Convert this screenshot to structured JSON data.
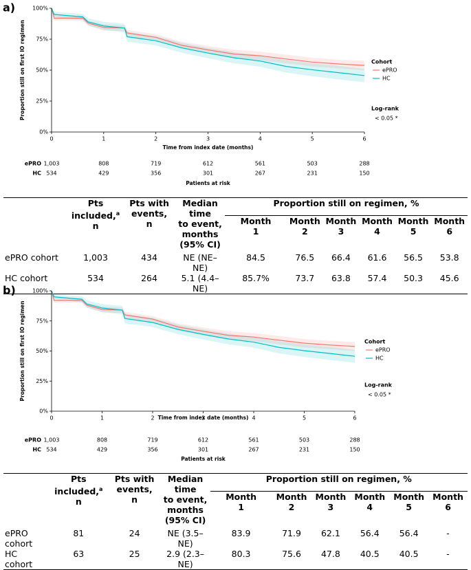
{
  "chart_data": [
    {
      "type": "line",
      "panel": "a)",
      "x_label": "Time from index date (months)",
      "y_label": "Proportion still on first IO regimen",
      "xlim": [
        0,
        6
      ],
      "xticks": [
        0,
        1,
        2,
        3,
        4,
        5,
        6
      ],
      "ylim": [
        0,
        100
      ],
      "yticks": [
        {
          "value": 0,
          "label": "0%"
        },
        {
          "value": 25,
          "label": "25%"
        },
        {
          "value": 50,
          "label": "50%"
        },
        {
          "value": 75,
          "label": "75%"
        },
        {
          "value": 100,
          "label": "100%"
        }
      ],
      "legend_title": "Cohort",
      "annotations": [
        "Log-rank",
        "< 0.05 *"
      ],
      "series": [
        {
          "name": "ePRO",
          "color": "#f8766d",
          "x": [
            0,
            0.05,
            0.6,
            0.7,
            1,
            1.4,
            1.45,
            2,
            2.5,
            3,
            3.5,
            4,
            4.5,
            5,
            5.5,
            6
          ],
          "values": [
            100,
            92,
            92,
            88,
            84.5,
            84,
            80,
            76.5,
            70,
            66.4,
            63,
            61.6,
            59,
            56.5,
            55,
            53.8
          ],
          "ci_upper": [
            100,
            94,
            94,
            90,
            87,
            86,
            82.5,
            79,
            73,
            69.5,
            66.5,
            65,
            62.5,
            60,
            58.5,
            57.5
          ],
          "ci_lower": [
            100,
            90,
            90,
            86,
            82,
            81.5,
            77.5,
            74,
            67,
            63.3,
            59.5,
            58.2,
            55.5,
            53,
            51.5,
            50
          ]
        },
        {
          "name": "HC",
          "color": "#00bfc4",
          "x": [
            0,
            0.05,
            0.6,
            0.7,
            1,
            1.4,
            1.45,
            2,
            2.5,
            3,
            3.5,
            4,
            4.5,
            5,
            5.5,
            6
          ],
          "values": [
            100,
            95,
            93,
            89,
            85.7,
            84,
            77,
            73.7,
            68,
            63.8,
            60,
            57.4,
            53,
            50.3,
            48,
            45.6
          ],
          "ci_upper": [
            100,
            97,
            95.5,
            92,
            89,
            87.5,
            81,
            77.5,
            72,
            68,
            64.5,
            62,
            58,
            55.5,
            53.5,
            51
          ],
          "ci_lower": [
            100,
            93,
            90.5,
            86,
            82.4,
            80.5,
            73,
            69.9,
            64,
            59.6,
            55.5,
            52.8,
            48,
            45.1,
            42.5,
            40.2
          ]
        }
      ],
      "risk_table": {
        "title": "Patients at risk",
        "rows": [
          {
            "name": "ePRO",
            "values": [
              "1,003",
              "808",
              "719",
              "612",
              "561",
              "503",
              "288"
            ]
          },
          {
            "name": "HC",
            "values": [
              "534",
              "429",
              "356",
              "301",
              "267",
              "231",
              "150"
            ]
          }
        ]
      }
    },
    {
      "type": "line",
      "panel": "b)",
      "x_label": "Time from index date (months)",
      "y_label": "Proportion still on first IO regimen",
      "xlim": [
        0,
        6
      ],
      "xticks": [
        0,
        1,
        2,
        3,
        4,
        5,
        6
      ],
      "ylim": [
        0,
        100
      ],
      "yticks": [
        {
          "value": 0,
          "label": "0%"
        },
        {
          "value": 25,
          "label": "25%"
        },
        {
          "value": 50,
          "label": "50%"
        },
        {
          "value": 75,
          "label": "75%"
        },
        {
          "value": 100,
          "label": "100%"
        }
      ],
      "legend_title": "Cohort",
      "annotations": [
        "Log-rank",
        "< 0.05 *"
      ],
      "series": [
        {
          "name": "ePRO",
          "color": "#f8766d",
          "x": [
            0,
            0.05,
            0.6,
            0.7,
            1,
            1.4,
            1.45,
            2,
            2.5,
            3,
            3.5,
            4,
            4.5,
            5,
            5.5,
            6
          ],
          "values": [
            100,
            92,
            92,
            88,
            84.5,
            84,
            80,
            76.5,
            70,
            66.4,
            63,
            61.6,
            59,
            56.5,
            55,
            53.8
          ],
          "ci_upper": [
            100,
            94,
            94,
            90,
            87,
            86,
            82.5,
            79,
            73,
            69.5,
            66.5,
            65,
            62.5,
            60,
            58.5,
            57.5
          ],
          "ci_lower": [
            100,
            90,
            90,
            86,
            82,
            81.5,
            77.5,
            74,
            67,
            63.3,
            59.5,
            58.2,
            55.5,
            53,
            51.5,
            50
          ]
        },
        {
          "name": "HC",
          "color": "#00bfc4",
          "x": [
            0,
            0.05,
            0.6,
            0.7,
            1,
            1.4,
            1.45,
            2,
            2.5,
            3,
            3.5,
            4,
            4.5,
            5,
            5.5,
            6
          ],
          "values": [
            100,
            95,
            93,
            89,
            85.7,
            84,
            77,
            73.7,
            68,
            63.8,
            60,
            57.4,
            53,
            50.3,
            48,
            45.6
          ],
          "ci_upper": [
            100,
            97,
            95.5,
            92,
            89,
            87.5,
            81,
            77.5,
            72,
            68,
            64.5,
            62,
            58,
            55.5,
            53.5,
            51
          ],
          "ci_lower": [
            100,
            93,
            90.5,
            86,
            82.4,
            80.5,
            73,
            69.9,
            64,
            59.6,
            55.5,
            52.8,
            48,
            45.1,
            42.5,
            40.2
          ]
        }
      ],
      "risk_table": {
        "title": "Patients at risk",
        "rows": [
          {
            "name": "ePRO",
            "values": [
              "1,003",
              "808",
              "719",
              "612",
              "561",
              "503",
              "288"
            ]
          },
          {
            "name": "HC",
            "values": [
              "534",
              "429",
              "356",
              "301",
              "267",
              "231",
              "150"
            ]
          }
        ]
      }
    }
  ],
  "tables": [
    {
      "group": "Proportion still on regimen, %",
      "columns": [
        {
          "lines": [
            "Pts",
            "included,",
            "n"
          ],
          "sup": "a"
        },
        {
          "lines": [
            "Pts with",
            "events,",
            "n"
          ]
        },
        {
          "lines": [
            "Median time",
            "to event,",
            "months",
            "(95% CI)"
          ]
        },
        {
          "lines": [
            "Month",
            "1"
          ]
        },
        {
          "lines": [
            "Month",
            "2"
          ]
        },
        {
          "lines": [
            "Month",
            "3"
          ]
        },
        {
          "lines": [
            "Month",
            "4"
          ]
        },
        {
          "lines": [
            "Month",
            "5"
          ]
        },
        {
          "lines": [
            "Month",
            "6"
          ]
        }
      ],
      "rows": [
        [
          "ePRO cohort",
          "1,003",
          "434",
          "NE (NE–NE)",
          "84.5",
          "76.5",
          "66.4",
          "61.6",
          "56.5",
          "53.8"
        ],
        [
          "HC cohort",
          "534",
          "264",
          "5.1 (4.4–NE)",
          "85.7%",
          "73.7",
          "63.8",
          "57.4",
          "50.3",
          "45.6"
        ]
      ]
    },
    {
      "group": "Proportion still on regimen, %",
      "columns": [
        {
          "lines": [
            "Pts",
            "included,",
            "n"
          ],
          "sup": "a"
        },
        {
          "lines": [
            "Pts with",
            "events,",
            "n"
          ]
        },
        {
          "lines": [
            "Median time",
            "to event,",
            "months",
            "(95% CI)"
          ]
        },
        {
          "lines": [
            "Month",
            "1"
          ]
        },
        {
          "lines": [
            "Month",
            "2"
          ]
        },
        {
          "lines": [
            "Month",
            "3"
          ]
        },
        {
          "lines": [
            "Month",
            "4"
          ]
        },
        {
          "lines": [
            "Month",
            "5"
          ]
        },
        {
          "lines": [
            "Month",
            "6"
          ]
        }
      ],
      "rows": [
        [
          "ePRO cohort",
          "81",
          "24",
          "NE (3.5–NE)",
          "83.9",
          "71.9",
          "62.1",
          "56.4",
          "56.4",
          "-"
        ],
        [
          "HC cohort",
          "63",
          "25",
          "2.9 (2.3–NE)",
          "80.3",
          "75.6",
          "47.8",
          "40.5",
          "40.5",
          "-"
        ]
      ]
    }
  ]
}
